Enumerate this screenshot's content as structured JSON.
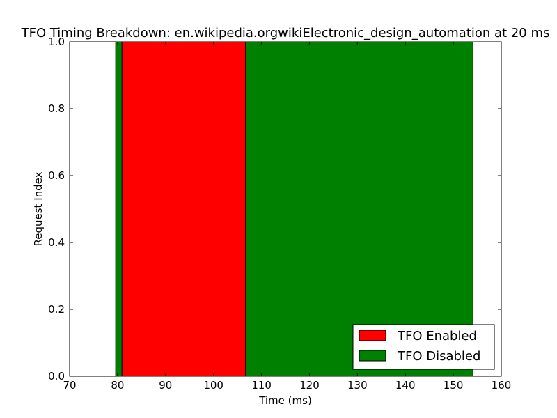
{
  "chart_data": {
    "type": "bar",
    "title": "TFO Timing Breakdown: en.wikipedia.orgwikiElectronic_design_automation at 20 ms",
    "xlabel": "Time (ms)",
    "ylabel": "Request Index",
    "xlim": [
      70,
      160
    ],
    "ylim": [
      0.0,
      1.0
    ],
    "xticks": [
      70,
      80,
      90,
      100,
      110,
      120,
      130,
      140,
      150,
      160
    ],
    "yticks": [
      0.0,
      0.2,
      0.4,
      0.6,
      0.8,
      1.0
    ],
    "xtick_labels": [
      "70",
      "80",
      "90",
      "100",
      "110",
      "120",
      "130",
      "140",
      "150",
      "160"
    ],
    "ytick_labels": [
      "0.0",
      "0.2",
      "0.4",
      "0.6",
      "0.8",
      "1.0"
    ],
    "grid": false,
    "legend_position": "lower-right",
    "series": [
      {
        "name": "TFO Enabled",
        "color": "#ff0000",
        "segments": [
          {
            "start": 80.9,
            "end": 106.7,
            "y0": 0.0,
            "y1": 1.0
          }
        ]
      },
      {
        "name": "TFO Disabled",
        "color": "#008000",
        "segments": [
          {
            "start": 79.6,
            "end": 80.9,
            "y0": 0.0,
            "y1": 1.0
          },
          {
            "start": 106.7,
            "end": 154.1,
            "y0": 0.0,
            "y1": 1.0
          }
        ]
      }
    ]
  }
}
